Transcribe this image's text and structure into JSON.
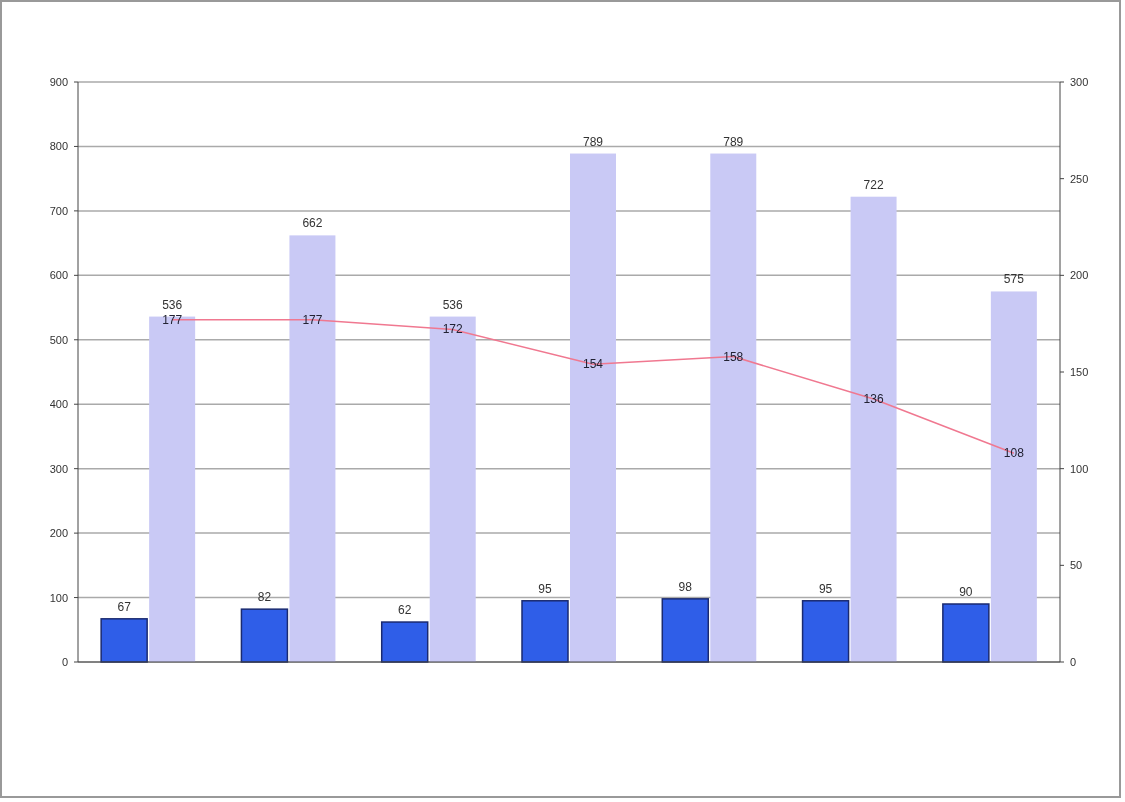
{
  "chart_data": {
    "type": "bar",
    "categories": [
      null,
      null,
      null,
      null,
      null,
      null,
      null
    ],
    "series": [
      {
        "color": "#2f5ee8",
        "values": [
          67,
          82,
          62,
          95,
          98,
          95,
          90
        ]
      },
      {
        "color": "#c9c9f5",
        "values": [
          536,
          662,
          536,
          789,
          789,
          722,
          575
        ]
      },
      {
        "type": "line",
        "axis": "y2",
        "color": "#f07890",
        "values": [
          177,
          177,
          172,
          154,
          158,
          136,
          108
        ]
      }
    ],
    "ylim": [
      0,
      900
    ],
    "yticks": [
      0,
      100,
      200,
      300,
      400,
      500,
      600,
      700,
      800,
      900
    ],
    "y2lim": [
      0,
      300
    ],
    "y2ticks": [
      0,
      50,
      100,
      150,
      200,
      250,
      300
    ],
    "grid": "y",
    "data_labels": true
  }
}
